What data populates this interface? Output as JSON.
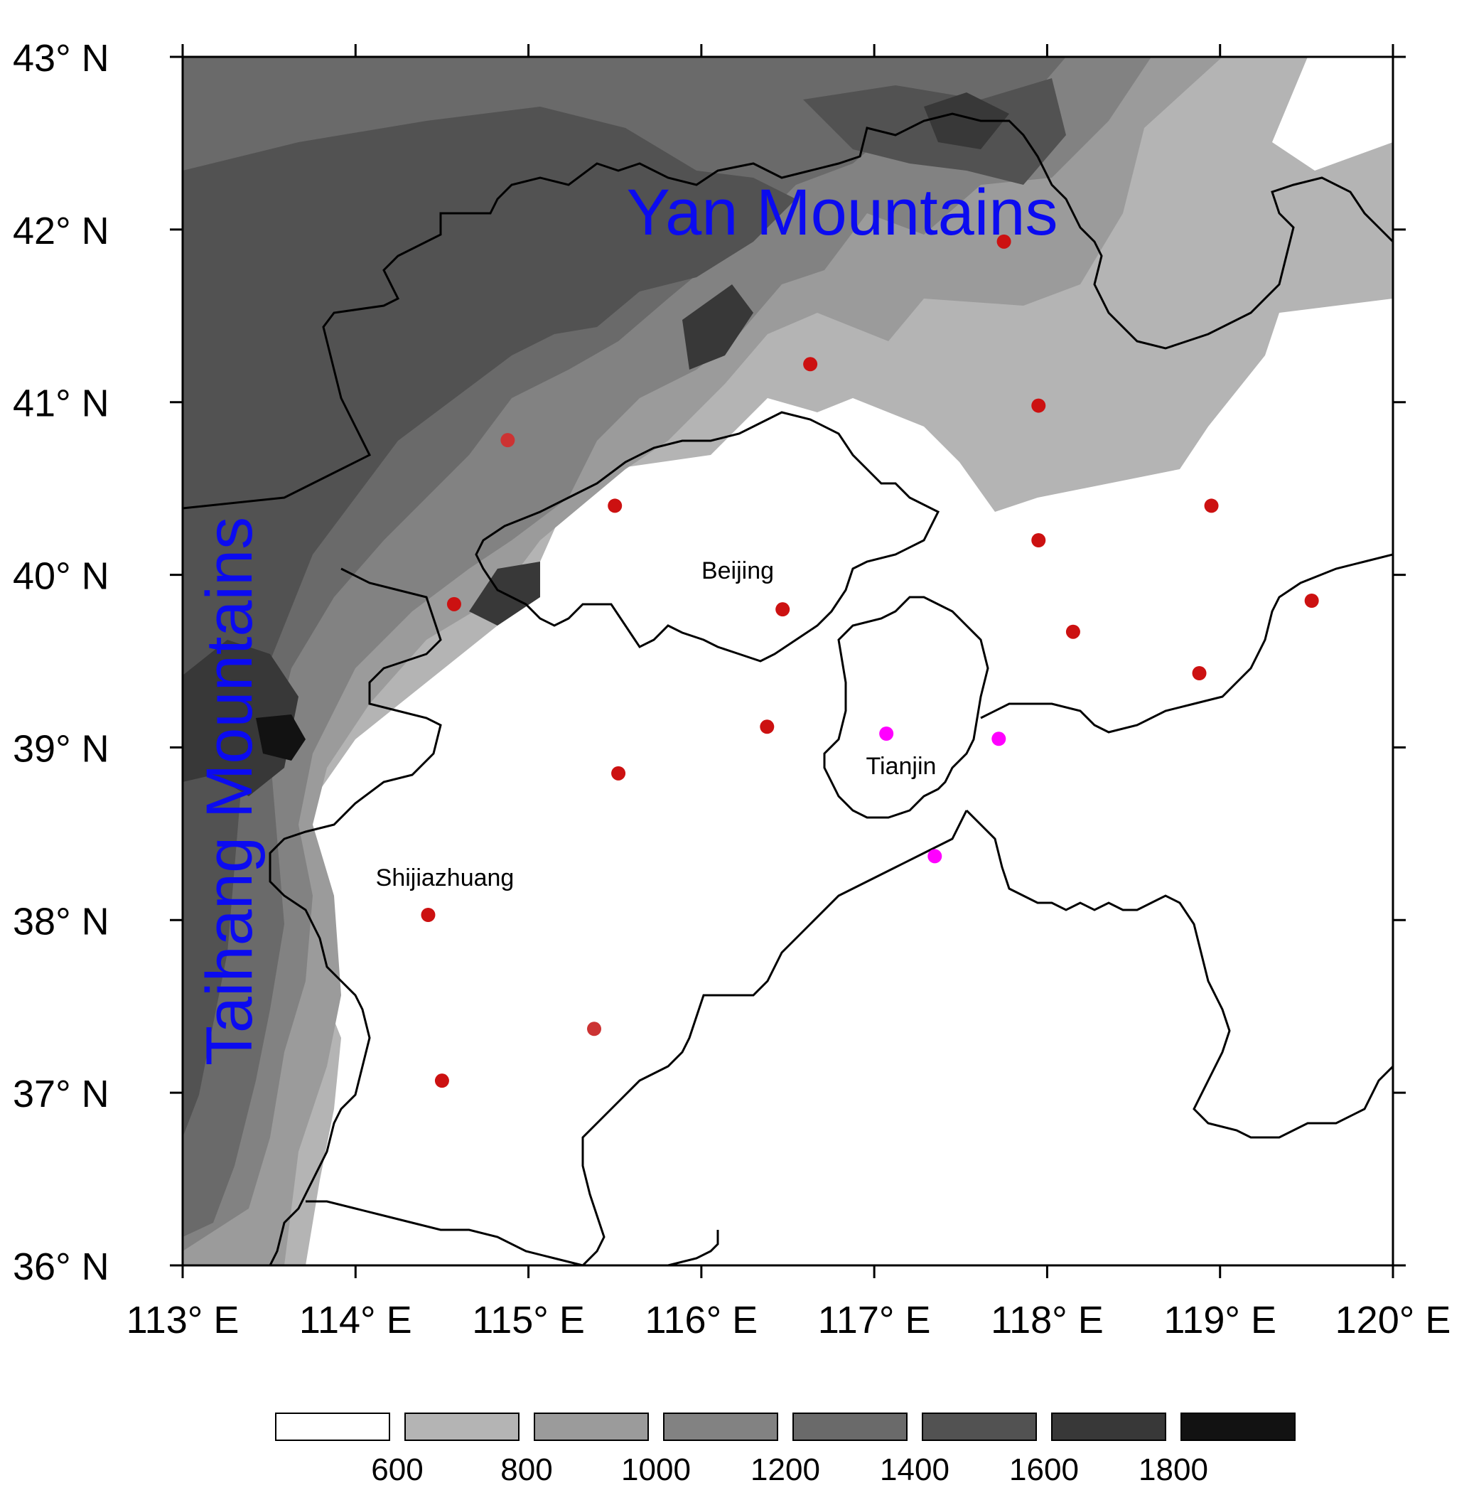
{
  "axes": {
    "lon_ticks": [
      113,
      114,
      115,
      116,
      117,
      118,
      119,
      120
    ],
    "lat_ticks": [
      36,
      37,
      38,
      39,
      40,
      41,
      42,
      43
    ],
    "lon_range": [
      113,
      120
    ],
    "lat_range": [
      36,
      43
    ],
    "lon_labels": [
      "113° E",
      "114° E",
      "115° E",
      "116° E",
      "117° E",
      "118° E",
      "119° E",
      "120° E"
    ],
    "lat_labels": [
      "36° N",
      "37° N",
      "38° N",
      "39° N",
      "40° N",
      "41° N",
      "42° N",
      "43° N"
    ]
  },
  "regions": {
    "yan": "Yan Mountains",
    "taihang": "Taihang Mountains"
  },
  "cities": [
    {
      "name": "Beijing",
      "lon": 116.3,
      "lat": 39.95
    },
    {
      "name": "Tianjin",
      "lon": 117.2,
      "lat": 38.9
    },
    {
      "name": "Shijiazhuang",
      "lon": 114.5,
      "lat": 38.25
    }
  ],
  "stations": [
    {
      "lon": 117.75,
      "lat": 41.93,
      "color": "#cc1111"
    },
    {
      "lon": 116.63,
      "lat": 41.22,
      "color": "#cc1111"
    },
    {
      "lon": 117.95,
      "lat": 40.98,
      "color": "#cc1111"
    },
    {
      "lon": 114.88,
      "lat": 40.78,
      "color": "#cc3333"
    },
    {
      "lon": 115.5,
      "lat": 40.4,
      "color": "#cc1111"
    },
    {
      "lon": 118.95,
      "lat": 40.4,
      "color": "#cc1111"
    },
    {
      "lon": 117.95,
      "lat": 40.2,
      "color": "#cc1111"
    },
    {
      "lon": 114.57,
      "lat": 39.83,
      "color": "#cc1111"
    },
    {
      "lon": 116.47,
      "lat": 39.8,
      "color": "#cc1111"
    },
    {
      "lon": 119.53,
      "lat": 39.85,
      "color": "#cc1111"
    },
    {
      "lon": 118.15,
      "lat": 39.67,
      "color": "#cc1111"
    },
    {
      "lon": 118.88,
      "lat": 39.43,
      "color": "#cc1111"
    },
    {
      "lon": 116.38,
      "lat": 39.12,
      "color": "#cc1111"
    },
    {
      "lon": 115.52,
      "lat": 38.85,
      "color": "#cc1111"
    },
    {
      "lon": 114.42,
      "lat": 38.03,
      "color": "#cc1111"
    },
    {
      "lon": 115.38,
      "lat": 37.37,
      "color": "#cc3333"
    },
    {
      "lon": 114.5,
      "lat": 37.07,
      "color": "#cc1111"
    },
    {
      "lon": 117.07,
      "lat": 39.08,
      "color": "#ff00ff"
    },
    {
      "lon": 117.72,
      "lat": 39.05,
      "color": "#ff00ff"
    },
    {
      "lon": 117.35,
      "lat": 38.37,
      "color": "#ff00ff"
    }
  ],
  "legend": {
    "levels": [
      "600",
      "800",
      "1000",
      "1200",
      "1400",
      "1600",
      "1800"
    ],
    "colors": [
      "#ffffff",
      "#b4b4b4",
      "#9b9b9b",
      "#828282",
      "#6a6a6a",
      "#525252",
      "#383838",
      "#121212"
    ]
  },
  "colors": {
    "region_label": "#0b0bf0",
    "boundary": "#000000",
    "station_red": "#cc1111",
    "station_magenta": "#ff00ff"
  }
}
